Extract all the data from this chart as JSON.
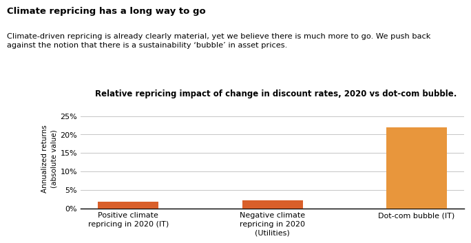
{
  "title_bold": "Climate repricing has a long way to go",
  "subtitle": "Climate-driven repricing is already clearly material, yet we believe there is much more to go. We push back\nagainst the notion that there is a sustainability ‘bubble’ in asset prices.",
  "chart_title": "Relative repricing impact of change in discount rates, 2020 vs dot-com bubble.",
  "categories": [
    "Positive climate\nrepricing in 2020 (IT)",
    "Negative climate\nrepricing in 2020\n(Utilities)",
    "Dot-com bubble (IT)"
  ],
  "values": [
    1.8,
    2.2,
    22.0
  ],
  "bar_colors": [
    "#D95F2A",
    "#D95F2A",
    "#E8963C"
  ],
  "ylabel": "Annualized returns\n(absolute value)",
  "ylim": [
    0,
    0.27
  ],
  "yticks": [
    0.0,
    0.05,
    0.1,
    0.15,
    0.2,
    0.25
  ],
  "ytick_labels": [
    "0%",
    "5%",
    "10%",
    "15%",
    "20%",
    "25%"
  ],
  "background_color": "#ffffff",
  "grid_color": "#bbbbbb",
  "title_fontsize": 9.5,
  "subtitle_fontsize": 8.2,
  "chart_title_fontsize": 8.5,
  "axis_fontsize": 7.5,
  "tick_fontsize": 8
}
